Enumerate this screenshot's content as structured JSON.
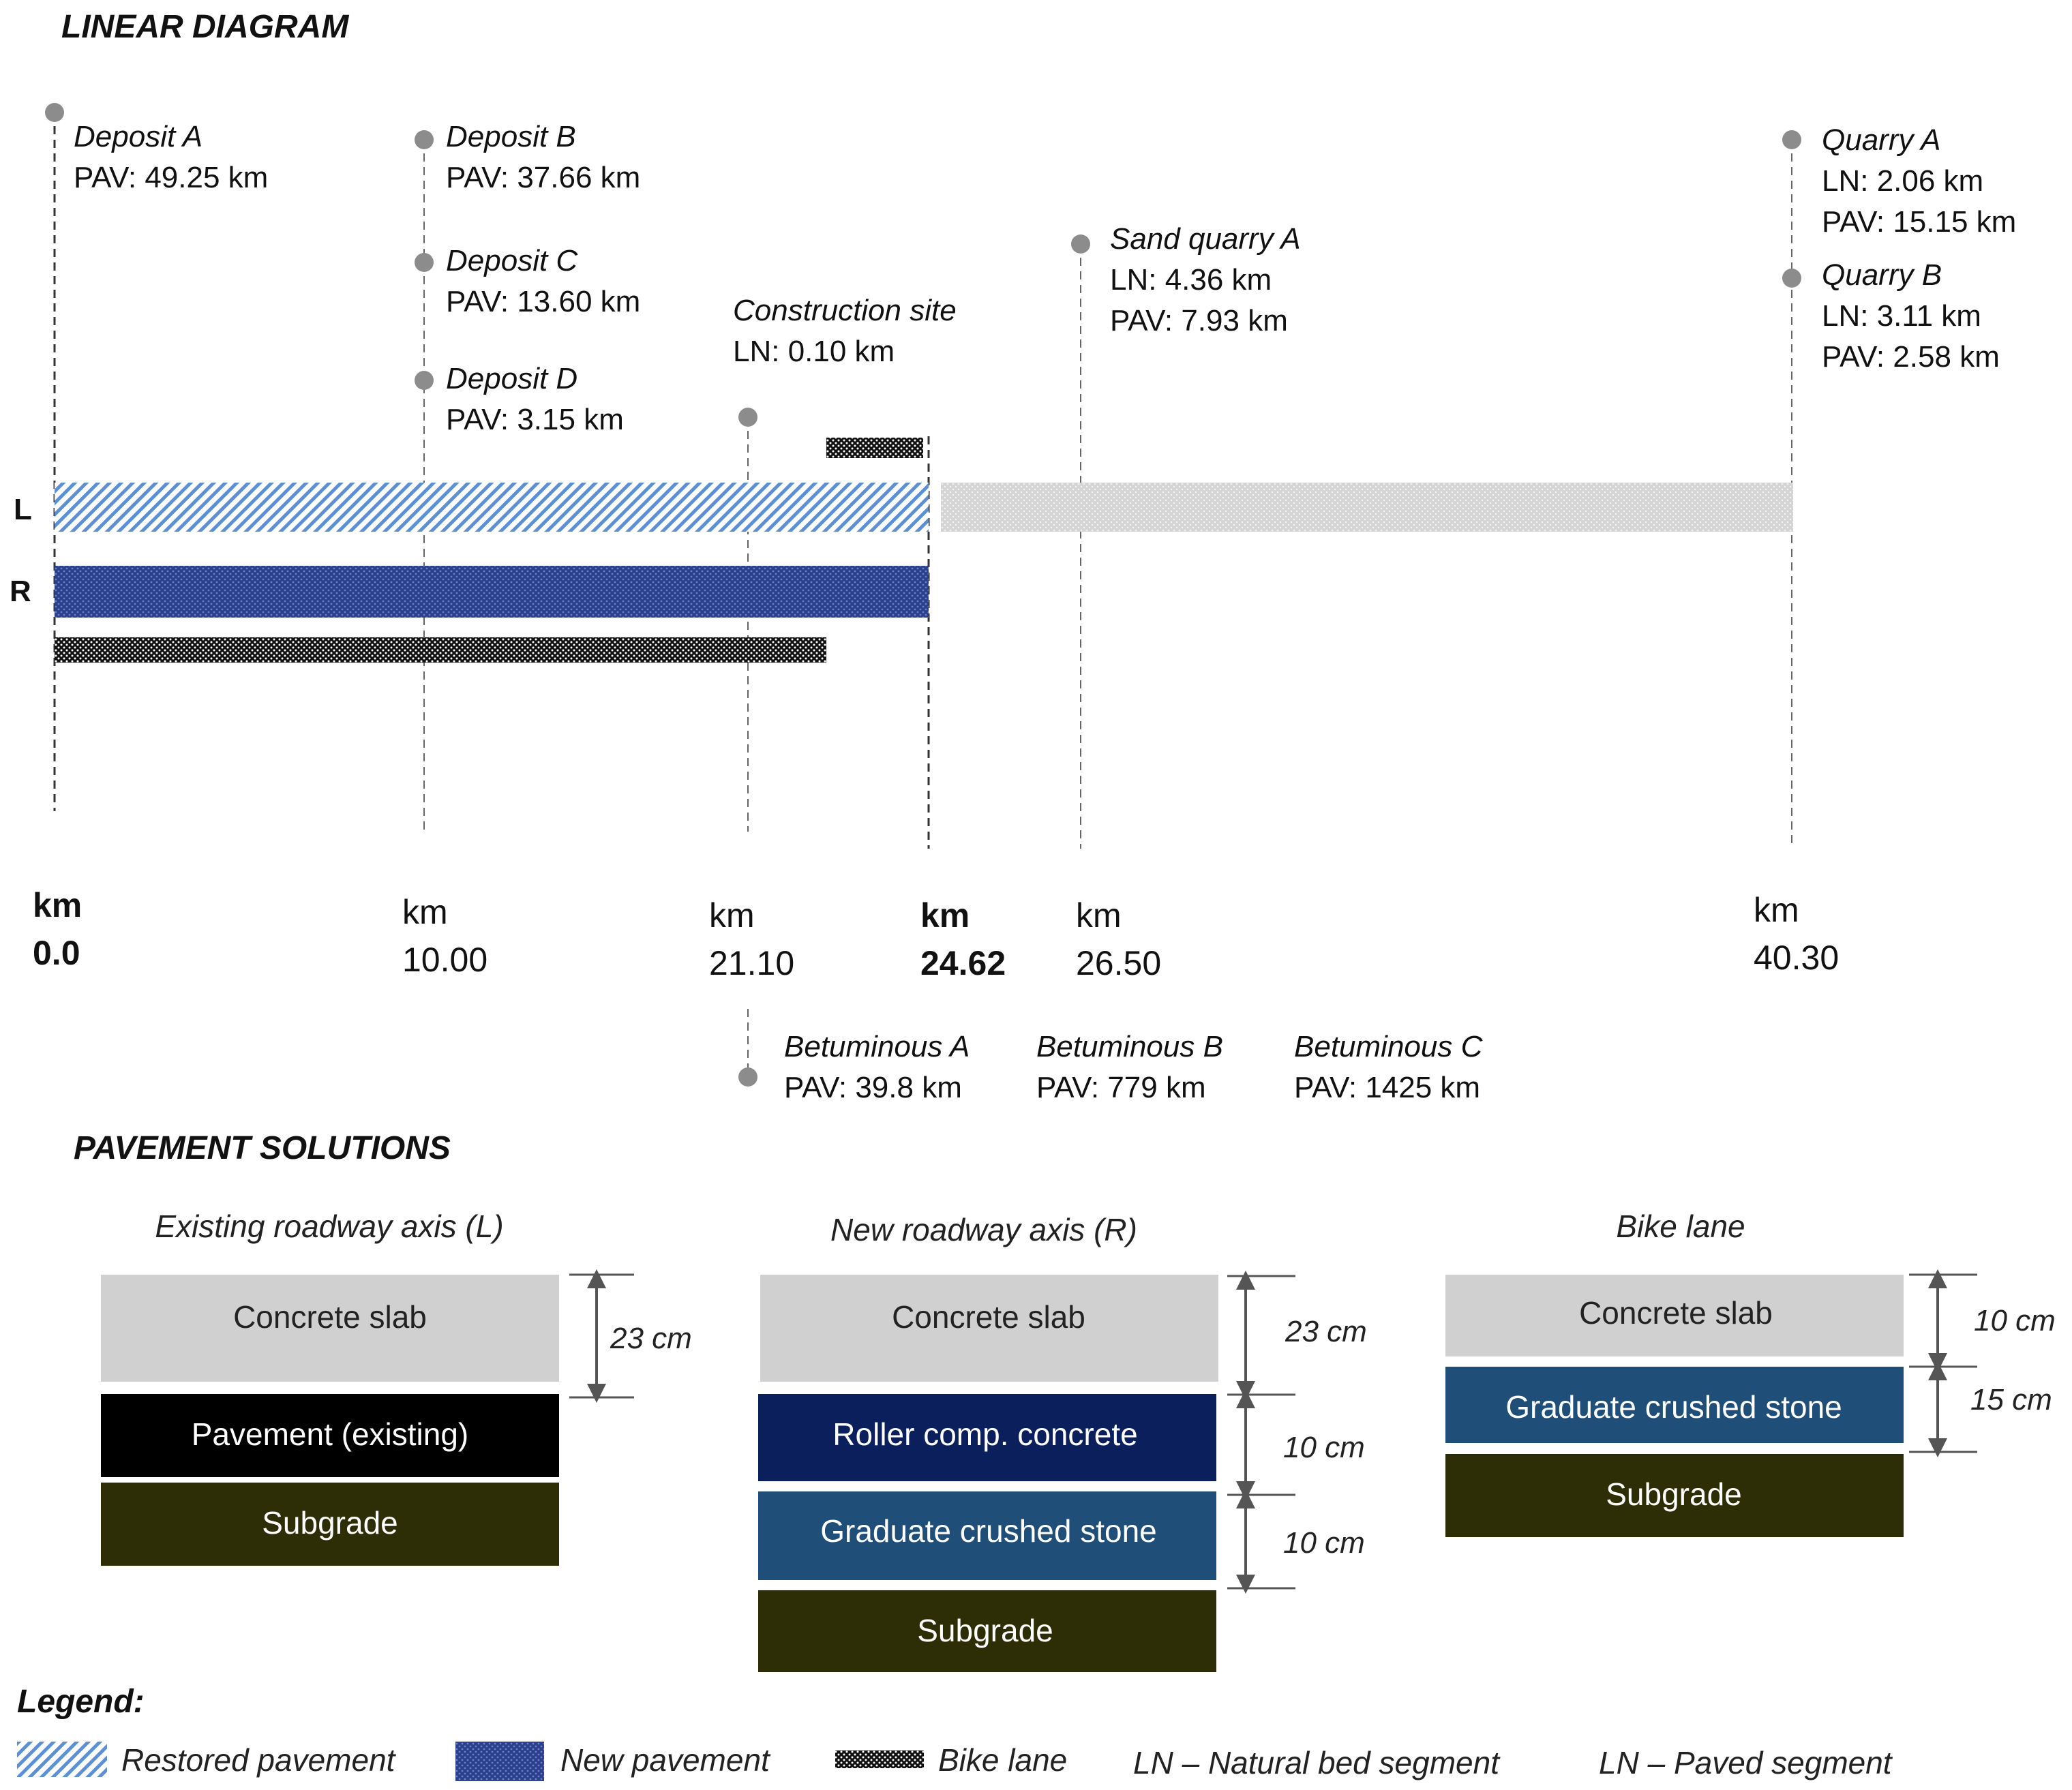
{
  "titles": {
    "linear": "LINEAR DIAGRAM",
    "pavement": "PAVEMENT SOLUTIONS",
    "legend": "Legend:"
  },
  "lanes": {
    "left": "L",
    "right": "R"
  },
  "top_points": [
    {
      "name": "Deposit A",
      "lines": [
        "PAV: 49.25 km"
      ]
    },
    {
      "name": "Deposit B",
      "lines": [
        "PAV: 37.66 km"
      ]
    },
    {
      "name": "Deposit C",
      "lines": [
        "PAV: 13.60 km"
      ]
    },
    {
      "name": "Deposit D",
      "lines": [
        "PAV: 3.15 km"
      ]
    },
    {
      "name": "Construction site",
      "lines": [
        "LN: 0.10 km"
      ]
    },
    {
      "name": "Sand quarry A",
      "lines": [
        "LN: 4.36 km",
        "PAV: 7.93 km"
      ]
    },
    {
      "name": "Quarry A",
      "lines": [
        "LN: 2.06 km",
        "PAV: 15.15 km"
      ]
    },
    {
      "name": "Quarry B",
      "lines": [
        "LN: 3.11 km",
        "PAV: 2.58 km"
      ]
    }
  ],
  "km_marks": [
    {
      "label": "km",
      "value": "0.0",
      "bold": true
    },
    {
      "label": "km",
      "value": "10.00",
      "bold": false
    },
    {
      "label": "km",
      "value": "21.10",
      "bold": false
    },
    {
      "label": "km",
      "value": "24.62",
      "bold": true
    },
    {
      "label": "km",
      "value": "26.50",
      "bold": false
    },
    {
      "label": "km",
      "value": "40.30",
      "bold": false
    }
  ],
  "bottom_points": [
    {
      "name": "Betuminous A",
      "line": "PAV: 39.8 km"
    },
    {
      "name": "Betuminous B",
      "line": "PAV: 779 km"
    },
    {
      "name": "Betuminous C",
      "line": "PAV: 1425 km"
    }
  ],
  "pavement_solutions": [
    {
      "title": "Existing roadway axis (L)",
      "layers": [
        "Concrete slab",
        "Pavement (existing)",
        "Subgrade"
      ],
      "dims": [
        "23 cm"
      ]
    },
    {
      "title": "New roadway axis (R)",
      "layers": [
        "Concrete slab",
        "Roller comp. concrete",
        "Graduate crushed stone",
        "Subgrade"
      ],
      "dims": [
        "23 cm",
        "10 cm",
        "10 cm"
      ]
    },
    {
      "title": "Bike lane",
      "layers": [
        "Concrete slab",
        "Graduate crushed stone",
        "Subgrade"
      ],
      "dims": [
        "10 cm",
        "15 cm"
      ]
    }
  ],
  "legend": [
    "Restored pavement",
    "New pavement",
    "Bike lane",
    "LN – Natural bed segment",
    "LN – Paved segment"
  ],
  "colors": {
    "concrete": "#d0d0d0",
    "existing": "#000000",
    "subgrade": "#2e2e06",
    "roller": "#0b1f5c",
    "crushed": "#1f4e79",
    "restored": "#5b8fd6",
    "new_pavement": "#2b3f8c",
    "marker": "#8c8c8c"
  }
}
